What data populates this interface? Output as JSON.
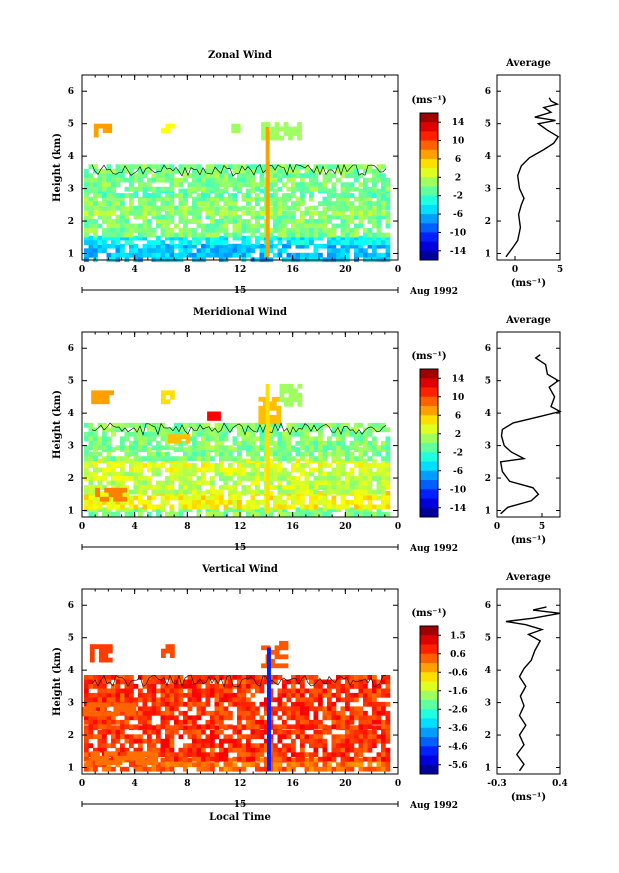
{
  "chart_data": [
    {
      "type": "heatmap",
      "title": "Zonal Wind",
      "ylabel": "Height (km)",
      "xlabel": "",
      "x_ticks": [
        "0",
        "4",
        "8",
        "12",
        "16",
        "20",
        "0"
      ],
      "x_range": [
        0,
        24
      ],
      "y_ticks": [
        "1",
        "2",
        "3",
        "4",
        "5",
        "6"
      ],
      "y_range": [
        0.8,
        6.5
      ],
      "date_label": "15",
      "date_suffix": "Aug 1992",
      "colorbar": {
        "unit": "(ms⁻¹)",
        "ticks": [
          "14",
          "10",
          "6",
          "2",
          "-2",
          "-6",
          "-10",
          "-14"
        ],
        "range": [
          -16,
          16
        ]
      },
      "bands": [
        {
          "y0": 0.85,
          "y1": 1.3,
          "value": -6
        },
        {
          "y0": 1.3,
          "y1": 1.55,
          "value": -4
        },
        {
          "y0": 1.55,
          "y1": 2.2,
          "value": 0
        },
        {
          "y0": 2.2,
          "y1": 2.45,
          "value": 1
        },
        {
          "y0": 2.45,
          "y1": 2.75,
          "value": 0
        },
        {
          "y0": 2.75,
          "y1": 3.0,
          "value": -1
        },
        {
          "y0": 3.0,
          "y1": 3.75,
          "value": 0
        }
      ],
      "patches": [
        {
          "x0": 0.9,
          "x1": 2.0,
          "y0": 4.6,
          "y1": 5.0,
          "value": 7
        },
        {
          "x0": 6.0,
          "x1": 6.8,
          "y0": 4.8,
          "y1": 5.0,
          "value": 4
        },
        {
          "x0": 11.0,
          "x1": 12.0,
          "y0": 4.8,
          "y1": 5.0,
          "value": 1
        },
        {
          "x0": 13.6,
          "x1": 16.4,
          "y0": 4.5,
          "y1": 5.05,
          "value": 1
        }
      ],
      "spike": {
        "x": 14.1,
        "y0": 0.9,
        "y1": 4.9,
        "value": 7
      },
      "average": {
        "title": "Average",
        "xlabel": "(ms⁻¹)",
        "x_ticks": [
          "0",
          "5"
        ],
        "x_range": [
          -2,
          5
        ],
        "y_ticks": [
          "1",
          "2",
          "3",
          "4",
          "5",
          "6"
        ],
        "y_range": [
          0.8,
          6.5
        ],
        "profile": [
          [
            -1.0,
            0.9
          ],
          [
            -0.2,
            1.2
          ],
          [
            0.3,
            1.4
          ],
          [
            0.6,
            1.8
          ],
          [
            0.4,
            2.2
          ],
          [
            0.7,
            2.5
          ],
          [
            1.0,
            2.7
          ],
          [
            0.5,
            3.0
          ],
          [
            0.3,
            3.4
          ],
          [
            0.7,
            3.7
          ],
          [
            1.6,
            3.95
          ],
          [
            3.2,
            4.2
          ],
          [
            4.3,
            4.4
          ],
          [
            4.8,
            4.6
          ],
          [
            3.6,
            4.8
          ],
          [
            2.6,
            5.0
          ],
          [
            4.5,
            5.1
          ],
          [
            2.2,
            5.2
          ],
          [
            4.0,
            5.35
          ],
          [
            3.2,
            5.5
          ],
          [
            4.7,
            5.6
          ],
          [
            4.0,
            5.7
          ],
          [
            3.8,
            5.8
          ]
        ]
      }
    },
    {
      "type": "heatmap",
      "title": "Meridional Wind",
      "ylabel": "Height (km)",
      "xlabel": "",
      "x_ticks": [
        "0",
        "4",
        "8",
        "12",
        "16",
        "20",
        "0"
      ],
      "x_range": [
        0,
        24
      ],
      "y_ticks": [
        "1",
        "2",
        "3",
        "4",
        "5",
        "6"
      ],
      "y_range": [
        0.8,
        6.5
      ],
      "date_label": "15",
      "date_suffix": "Aug 1992",
      "colorbar": {
        "unit": "(ms⁻¹)",
        "ticks": [
          "14",
          "10",
          "6",
          "2",
          "-2",
          "-6",
          "-10",
          "-14"
        ],
        "range": [
          -16,
          16
        ]
      },
      "bands": [
        {
          "y0": 0.85,
          "y1": 1.1,
          "value": 0
        },
        {
          "y0": 1.1,
          "y1": 1.6,
          "value": 4
        },
        {
          "y0": 1.6,
          "y1": 2.2,
          "value": 2
        },
        {
          "y0": 2.2,
          "y1": 2.6,
          "value": 3
        },
        {
          "y0": 2.6,
          "y1": 2.95,
          "value": 0
        },
        {
          "y0": 2.95,
          "y1": 3.7,
          "value": 0
        }
      ],
      "patches": [
        {
          "x0": 0.7,
          "x1": 2.2,
          "y0": 4.3,
          "y1": 4.7,
          "value": 7
        },
        {
          "x0": 6.0,
          "x1": 7.0,
          "y0": 4.4,
          "y1": 4.7,
          "value": 5
        },
        {
          "x0": 9.5,
          "x1": 10.3,
          "y0": 3.85,
          "y1": 4.05,
          "value": 12
        },
        {
          "x0": 13.4,
          "x1": 14.8,
          "y0": 3.7,
          "y1": 4.5,
          "value": 6
        },
        {
          "x0": 15.0,
          "x1": 16.6,
          "y0": 4.3,
          "y1": 4.9,
          "value": 1
        },
        {
          "x0": 6.5,
          "x1": 8.0,
          "y0": 3.15,
          "y1": 3.35,
          "value": 6
        },
        {
          "x0": 1.0,
          "x1": 3.2,
          "y0": 1.3,
          "y1": 1.7,
          "value": 8
        }
      ],
      "spike": {
        "x": 14.1,
        "y0": 0.9,
        "y1": 4.9,
        "value": 5
      },
      "average": {
        "title": "Average",
        "xlabel": "(ms⁻¹)",
        "x_ticks": [
          "0",
          "5"
        ],
        "x_range": [
          0,
          7
        ],
        "y_ticks": [
          "1",
          "2",
          "3",
          "4",
          "5",
          "6"
        ],
        "y_range": [
          0.8,
          6.5
        ],
        "profile": [
          [
            0.4,
            0.9
          ],
          [
            1.2,
            1.1
          ],
          [
            3.8,
            1.3
          ],
          [
            4.6,
            1.5
          ],
          [
            4.0,
            1.7
          ],
          [
            1.4,
            1.9
          ],
          [
            0.6,
            2.2
          ],
          [
            0.4,
            2.5
          ],
          [
            3.0,
            2.6
          ],
          [
            1.6,
            2.8
          ],
          [
            0.8,
            3.0
          ],
          [
            0.5,
            3.3
          ],
          [
            0.6,
            3.5
          ],
          [
            1.8,
            3.7
          ],
          [
            4.8,
            3.9
          ],
          [
            7.0,
            4.05
          ],
          [
            6.0,
            4.2
          ],
          [
            6.4,
            4.5
          ],
          [
            5.8,
            4.8
          ],
          [
            6.8,
            5.0
          ],
          [
            5.6,
            5.2
          ],
          [
            5.4,
            5.5
          ],
          [
            4.3,
            5.7
          ],
          [
            4.8,
            5.8
          ]
        ]
      }
    },
    {
      "type": "heatmap",
      "title": "Vertical Wind",
      "ylabel": "Height (km)",
      "xlabel": "Local Time",
      "x_ticks": [
        "0",
        "4",
        "8",
        "12",
        "16",
        "20",
        "0"
      ],
      "x_range": [
        0,
        24
      ],
      "y_ticks": [
        "1",
        "2",
        "3",
        "4",
        "5",
        "6"
      ],
      "y_range": [
        0.8,
        6.5
      ],
      "date_label": "15",
      "date_suffix": "Aug 1992",
      "colorbar": {
        "unit": "(ms⁻¹)",
        "ticks": [
          "1.5",
          "0.6",
          "-0.6",
          "-1.6",
          "-2.6",
          "-3.6",
          "-4.6",
          "-5.6"
        ],
        "range": [
          -6.1,
          2.0
        ]
      },
      "bands": [
        {
          "y0": 0.9,
          "y1": 1.3,
          "value": 0.2
        },
        {
          "y0": 1.3,
          "y1": 2.3,
          "value": 0.6
        },
        {
          "y0": 2.3,
          "y1": 3.3,
          "value": 0.6
        },
        {
          "y0": 3.3,
          "y1": 3.85,
          "value": 0.6
        }
      ],
      "patches": [
        {
          "x0": 0.6,
          "x1": 2.2,
          "y0": 4.35,
          "y1": 4.8,
          "value": 0.5
        },
        {
          "x0": 6.0,
          "x1": 7.0,
          "y0": 4.5,
          "y1": 4.8,
          "value": 0.4
        },
        {
          "x0": 13.6,
          "x1": 15.6,
          "y0": 4.2,
          "y1": 4.9,
          "value": 0.3
        },
        {
          "x0": 0.0,
          "x1": 4.0,
          "y0": 2.6,
          "y1": 3.0,
          "value": 0.2
        },
        {
          "x0": 0.3,
          "x1": 5.5,
          "y0": 1.1,
          "y1": 1.5,
          "value": 0.1
        }
      ],
      "spike": {
        "x": 14.2,
        "y0": 0.9,
        "y1": 4.7,
        "value": -4.8
      },
      "average": {
        "title": "Average",
        "xlabel": "(ms⁻¹)",
        "x_ticks": [
          "-0.3",
          "0.4"
        ],
        "x_range": [
          -0.3,
          0.4
        ],
        "y_ticks": [
          "1",
          "2",
          "3",
          "4",
          "5",
          "6"
        ],
        "y_range": [
          0.8,
          6.5
        ],
        "profile": [
          [
            -0.05,
            0.9
          ],
          [
            0.0,
            1.1
          ],
          [
            -0.08,
            1.4
          ],
          [
            0.0,
            1.7
          ],
          [
            -0.05,
            2.0
          ],
          [
            0.02,
            2.3
          ],
          [
            -0.05,
            2.6
          ],
          [
            0.0,
            2.9
          ],
          [
            -0.04,
            3.2
          ],
          [
            0.02,
            3.5
          ],
          [
            -0.05,
            3.8
          ],
          [
            0.0,
            4.05
          ],
          [
            0.08,
            4.3
          ],
          [
            0.12,
            4.6
          ],
          [
            0.18,
            4.9
          ],
          [
            0.05,
            5.1
          ],
          [
            0.2,
            5.25
          ],
          [
            0.02,
            5.4
          ],
          [
            -0.2,
            5.5
          ],
          [
            0.1,
            5.6
          ],
          [
            0.4,
            5.75
          ],
          [
            0.1,
            5.85
          ],
          [
            0.25,
            5.95
          ]
        ]
      }
    }
  ]
}
